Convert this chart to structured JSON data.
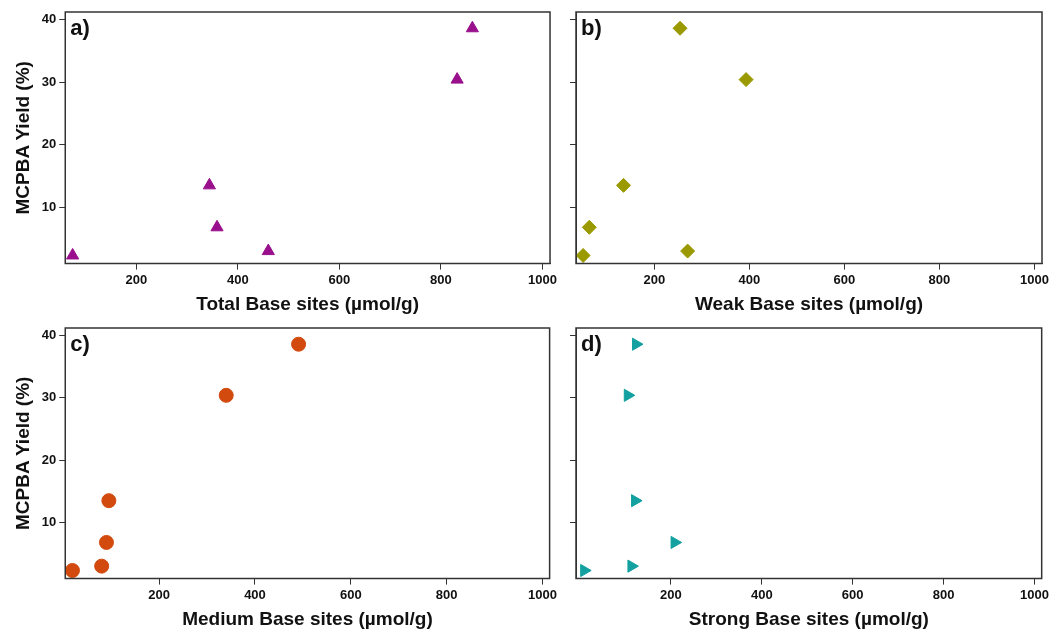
{
  "chart_data": [
    {
      "type": "scatter",
      "xlabel": "Total Base sites (µmol/g)",
      "ylabel": "MCPBA Yield (%)",
      "annotations": [
        "a)"
      ],
      "marker": "triangle",
      "xlim": [
        60,
        1015
      ],
      "xticks": [
        200,
        400,
        600,
        800,
        1000
      ],
      "ylim": [
        1,
        41.2
      ],
      "yticks": [
        10,
        20,
        30,
        40
      ],
      "grid": false,
      "legend": false,
      "series": [
        {
          "color": "#990f8c",
          "x": [
            74.5,
            344,
            359,
            460,
            832,
            862
          ],
          "values": [
            2.3,
            13.5,
            6.8,
            3.0,
            30.4,
            38.6
          ]
        }
      ]
    },
    {
      "type": "scatter",
      "xlabel": "Weak Base sites (µmol/g)",
      "annotations": [
        "b)"
      ],
      "marker": "diamond",
      "xlim": [
        35,
        1016
      ],
      "xticks": [
        200,
        400,
        600,
        800,
        1000
      ],
      "ylim": [
        1,
        41.2
      ],
      "yticks": [
        10,
        20,
        30,
        40
      ],
      "tick_labels": "x",
      "grid": false,
      "legend": false,
      "series": [
        {
          "color": "#9a9a00",
          "x": [
            50,
            63,
            135,
            270,
            254,
            393
          ],
          "values": [
            2.3,
            6.8,
            13.5,
            3.0,
            38.6,
            30.4
          ]
        }
      ]
    },
    {
      "type": "scatter",
      "xlabel": "Medium Base sites (µmol/g)",
      "ylabel": "MCPBA Yield (%)",
      "annotations": [
        "c)"
      ],
      "marker": "circle",
      "xlim": [
        4,
        1015
      ],
      "xticks": [
        200,
        400,
        600,
        800,
        1000
      ],
      "ylim": [
        1,
        41.2
      ],
      "yticks": [
        10,
        20,
        30,
        40
      ],
      "grid": false,
      "legend": false,
      "series": [
        {
          "color": "#d24a0e",
          "x": [
            19,
            80,
            90,
            95,
            340,
            491
          ],
          "values": [
            2.3,
            3.0,
            6.8,
            13.5,
            30.4,
            38.6
          ]
        }
      ]
    },
    {
      "type": "scatter",
      "xlabel": "Strong Base sites (µmol/g)",
      "annotations": [
        "d)"
      ],
      "marker": "triangle-right",
      "xlim": [
        -9,
        1016
      ],
      "xticks": [
        200,
        400,
        600,
        800,
        1000
      ],
      "ylim": [
        1,
        41.2
      ],
      "yticks": [
        10,
        20,
        30,
        40
      ],
      "tick_labels": "x",
      "grid": false,
      "legend": false,
      "series": [
        {
          "color": "#12a0a0",
          "x": [
            9,
            113,
            208,
            121,
            105,
            123
          ],
          "values": [
            2.3,
            3.0,
            6.8,
            13.5,
            30.4,
            38.6
          ]
        }
      ]
    }
  ]
}
